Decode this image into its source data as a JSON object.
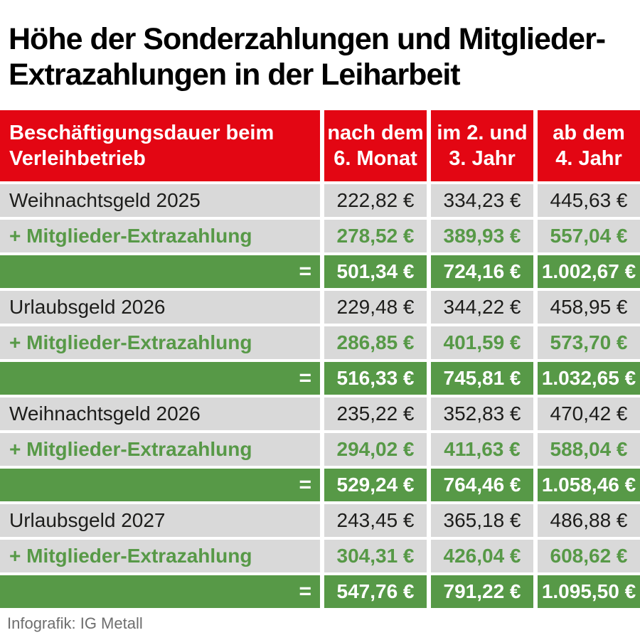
{
  "title": {
    "line1": "Höhe der Sonderzahlungen und Mitglieder-",
    "line2": "Extrazahlungen in der Leiharbeit"
  },
  "header": {
    "col1": {
      "line1": "Beschäftigungsdauer beim",
      "line2": "Verleihbetrieb"
    },
    "col2": {
      "line1": "nach dem",
      "line2": "6. Monat"
    },
    "col3": {
      "line1": "im 2. und",
      "line2": "3. Jahr"
    },
    "col4": {
      "line1": "ab dem",
      "line2": "4. Jahr"
    }
  },
  "colors": {
    "header_red": "#e30613",
    "accent_green": "#579947",
    "row_gray": "#d9d9d9",
    "text_black": "#1d1d1b",
    "footer_gray": "#6e6e6e"
  },
  "chart_data": {
    "type": "table",
    "title": "Höhe der Sonderzahlungen und Mitglieder-Extrazahlungen in der Leiharbeit",
    "columns": [
      "Beschäftigungsdauer beim Verleihbetrieb",
      "nach dem 6. Monat",
      "im 2. und 3. Jahr",
      "ab dem 4. Jahr"
    ],
    "rows": [
      {
        "style": "base",
        "label": "Weihnachtsgeld 2025",
        "values": [
          "222,82 €",
          "334,23 €",
          "445,63 €"
        ]
      },
      {
        "style": "extra",
        "label": "+ Mitglieder-Extrazahlung",
        "values": [
          "278,52 €",
          "389,93 €",
          "557,04 €"
        ]
      },
      {
        "style": "total",
        "label": "=",
        "values": [
          "501,34 €",
          "724,16 €",
          "1.002,67 €"
        ]
      },
      {
        "style": "base",
        "label": "Urlaubsgeld 2026",
        "values": [
          "229,48 €",
          "344,22 €",
          "458,95 €"
        ]
      },
      {
        "style": "extra",
        "label": "+ Mitglieder-Extrazahlung",
        "values": [
          "286,85 €",
          "401,59 €",
          "573,70 €"
        ]
      },
      {
        "style": "total",
        "label": "=",
        "values": [
          "516,33 €",
          "745,81 €",
          "1.032,65 €"
        ]
      },
      {
        "style": "base",
        "label": "Weihnachtsgeld 2026",
        "values": [
          "235,22 €",
          "352,83 €",
          "470,42 €"
        ]
      },
      {
        "style": "extra",
        "label": "+ Mitglieder-Extrazahlung",
        "values": [
          "294,02 €",
          "411,63 €",
          "588,04 €"
        ]
      },
      {
        "style": "total",
        "label": "=",
        "values": [
          "529,24 €",
          "764,46 €",
          "1.058,46 €"
        ]
      },
      {
        "style": "base",
        "label": "Urlaubsgeld 2027",
        "values": [
          "243,45 €",
          "365,18 €",
          "486,88 €"
        ]
      },
      {
        "style": "extra",
        "label": "+ Mitglieder-Extrazahlung",
        "values": [
          "304,31 €",
          "426,04 €",
          "608,62 €"
        ]
      },
      {
        "style": "total",
        "label": "=",
        "values": [
          "547,76 €",
          "791,22 €",
          "1.095,50 €"
        ]
      }
    ]
  },
  "footer": {
    "credit": "Infografik: IG Metall"
  }
}
